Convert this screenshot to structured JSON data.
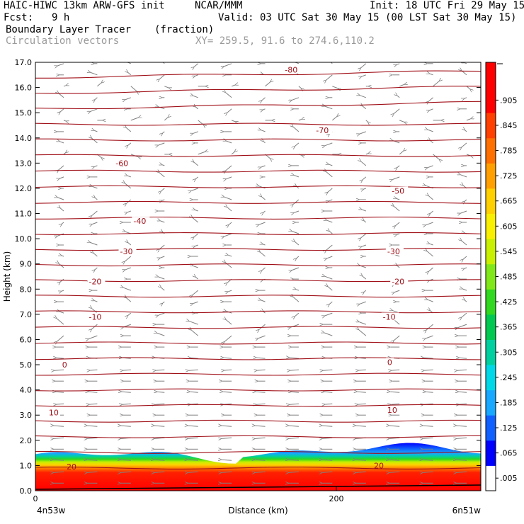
{
  "header": {
    "model_title": "HAIC-HIWC 13km ARW-GFS init",
    "org": "NCAR/MMM",
    "init": "Init: 18 UTC Fri 29 May 15",
    "fcst_label": "Fcst:",
    "fcst_value": "9 h",
    "valid": "Valid: 03 UTC Sat 30 May 15 (00 LST Sat 30 May 15)",
    "field_name": "Boundary Layer Tracer",
    "field_units": "(fraction)",
    "overlay_name": "Circulation vectors",
    "xy": "XY= 259.5, 91.6 to 274.6,110.2"
  },
  "chart_data": {
    "type": "cross-section",
    "ylabel": "Height (km)",
    "xlabel": "Distance (km)",
    "ylim": [
      0,
      17
    ],
    "xlim": [
      0,
      296
    ],
    "y_ticks": [
      "0.0",
      "1.0",
      "2.0",
      "3.0",
      "4.0",
      "5.0",
      "6.0",
      "7.0",
      "8.0",
      "9.0",
      "10.0",
      "11.0",
      "12.0",
      "13.0",
      "14.0",
      "15.0",
      "16.0",
      "17.0"
    ],
    "x_ticks": [
      {
        "value": 0,
        "label": "0"
      },
      {
        "value": 200,
        "label": "200"
      }
    ],
    "x_end_labels": {
      "left": "4n53w",
      "right": "6n51w"
    },
    "colorbar": {
      "labels": [
        ".905",
        ".845",
        ".785",
        ".725",
        ".665",
        ".605",
        ".545",
        ".485",
        ".425",
        ".365",
        ".305",
        ".245",
        ".185",
        ".125",
        ".065",
        ".005"
      ],
      "colors": [
        "#ffffff",
        "#0000ff",
        "#1060ff",
        "#18a8ff",
        "#00d8e8",
        "#00d0a0",
        "#00c850",
        "#30d820",
        "#80e818",
        "#c8f000",
        "#f8f000",
        "#ffd000",
        "#ffa000",
        "#ff7000",
        "#ff4000",
        "#ff0000",
        "#ff0000"
      ]
    },
    "temperature_contour_labels": [
      "-80",
      "-70",
      "-60",
      "-50",
      "-40",
      "-30",
      "-30",
      "-20",
      "-20",
      "-10",
      "-10",
      "0",
      "0",
      "10",
      "10",
      "20",
      "20"
    ],
    "tracer_top_km": 1.5,
    "contour_color": "#a01018",
    "vector_color": "#808080"
  }
}
